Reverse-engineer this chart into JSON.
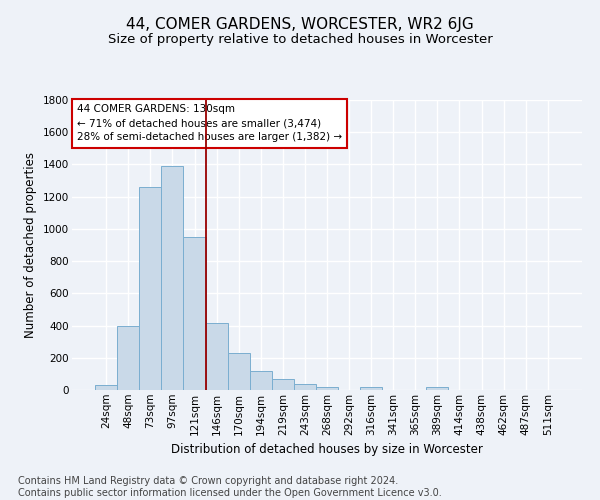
{
  "title": "44, COMER GARDENS, WORCESTER, WR2 6JG",
  "subtitle": "Size of property relative to detached houses in Worcester",
  "xlabel": "Distribution of detached houses by size in Worcester",
  "ylabel": "Number of detached properties",
  "footer_line1": "Contains HM Land Registry data © Crown copyright and database right 2024.",
  "footer_line2": "Contains public sector information licensed under the Open Government Licence v3.0.",
  "categories": [
    "24sqm",
    "48sqm",
    "73sqm",
    "97sqm",
    "121sqm",
    "146sqm",
    "170sqm",
    "194sqm",
    "219sqm",
    "243sqm",
    "268sqm",
    "292sqm",
    "316sqm",
    "341sqm",
    "365sqm",
    "389sqm",
    "414sqm",
    "438sqm",
    "462sqm",
    "487sqm",
    "511sqm"
  ],
  "values": [
    30,
    400,
    1260,
    1390,
    950,
    415,
    230,
    115,
    70,
    35,
    20,
    0,
    18,
    0,
    0,
    18,
    0,
    0,
    0,
    0,
    0
  ],
  "bar_color": "#c9d9e8",
  "bar_edge_color": "#7aaed0",
  "vline_color": "#990000",
  "vline_x_idx": 4.5,
  "annotation_text": "44 COMER GARDENS: 130sqm\n← 71% of detached houses are smaller (3,474)\n28% of semi-detached houses are larger (1,382) →",
  "annotation_box_facecolor": "white",
  "annotation_box_edgecolor": "#cc0000",
  "ylim": [
    0,
    1800
  ],
  "yticks": [
    0,
    200,
    400,
    600,
    800,
    1000,
    1200,
    1400,
    1600,
    1800
  ],
  "background_color": "#eef2f8",
  "grid_color": "white",
  "title_fontsize": 11,
  "subtitle_fontsize": 9.5,
  "axis_label_fontsize": 8.5,
  "tick_fontsize": 7.5,
  "footer_fontsize": 7
}
